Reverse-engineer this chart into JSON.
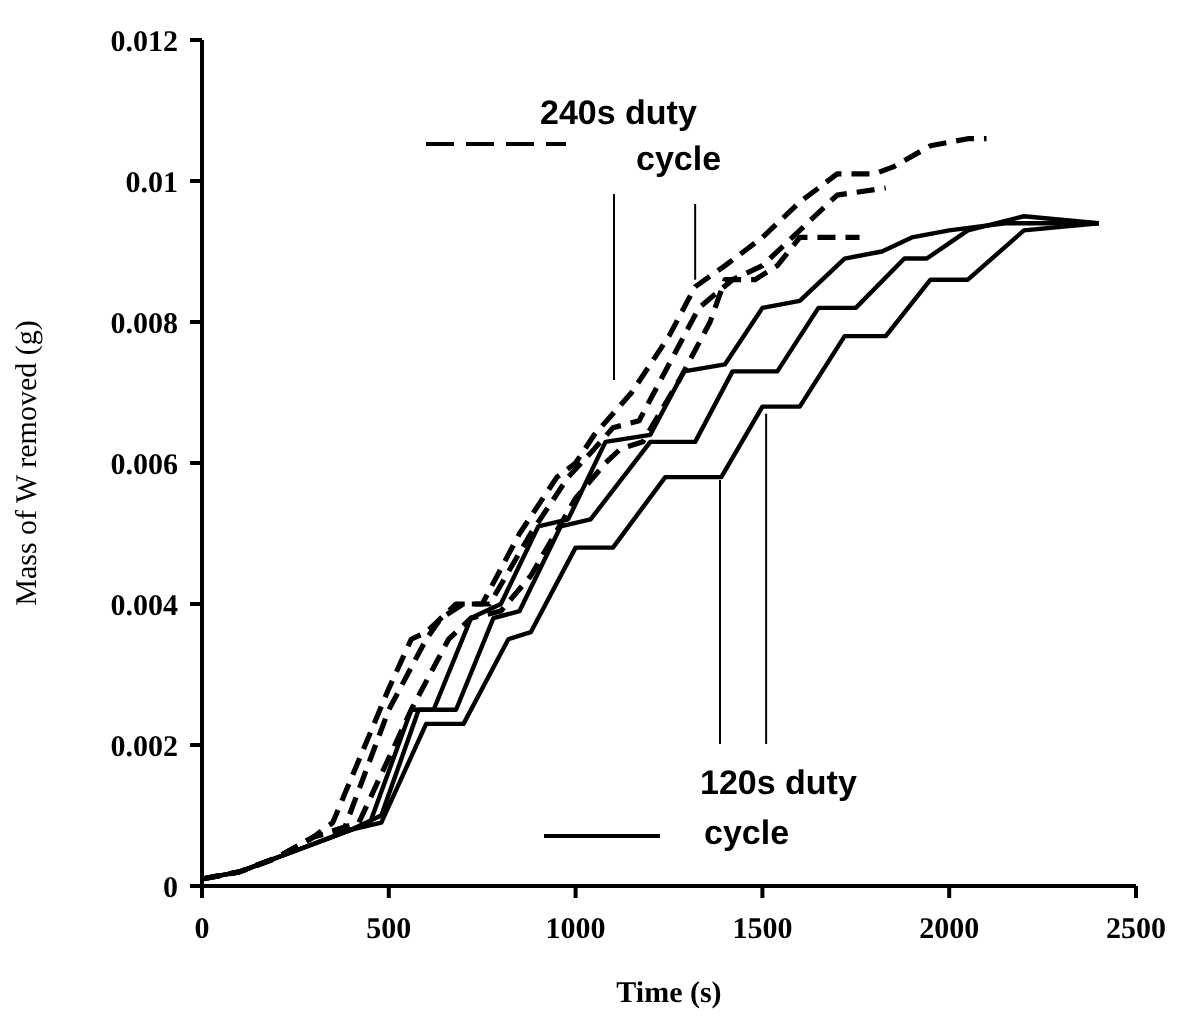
{
  "chart_data": {
    "type": "line",
    "xlabel": "Time (s)",
    "ylabel": "Mass of W removed (g)",
    "xlim": [
      0,
      2500
    ],
    "xticks": [
      0,
      500,
      1000,
      1500,
      2000,
      2500
    ],
    "ylim": [
      0,
      0.012
    ],
    "yticks": [
      0,
      0.002,
      0.004,
      0.006,
      0.008,
      0.01,
      0.012
    ],
    "grid": false,
    "marker": "none",
    "annotations": [
      {
        "text": "240s duty cycle",
        "x": 1320,
        "y": 0.0086
      },
      {
        "text": "120s duty cycle",
        "x": 1510,
        "y": 0.0067
      }
    ],
    "series": [
      {
        "color": "#000000",
        "line_style": "dashed",
        "x": [
          0,
          100,
          200,
          300,
          350,
          500,
          560,
          600,
          680,
          750,
          850,
          950,
          1000,
          1050,
          1150,
          1250,
          1320,
          1400,
          1500,
          1600,
          1700,
          1800,
          1850,
          1950,
          2050,
          2100
        ],
        "values": [
          0.0001,
          0.0002,
          0.0004,
          0.0007,
          0.0009,
          0.0028,
          0.0035,
          0.0036,
          0.004,
          0.004,
          0.005,
          0.0058,
          0.006,
          0.0064,
          0.007,
          0.0078,
          0.0085,
          0.0088,
          0.0092,
          0.0097,
          0.0101,
          0.0101,
          0.0102,
          0.0105,
          0.0106,
          0.0106
        ]
      },
      {
        "color": "#000000",
        "line_style": "dashed",
        "x": [
          0,
          100,
          200,
          300,
          380,
          500,
          600,
          640,
          700,
          770,
          880,
          980,
          1050,
          1100,
          1170,
          1250,
          1330,
          1420,
          1500,
          1600,
          1700,
          1830
        ],
        "values": [
          0.0001,
          0.0002,
          0.0004,
          0.0007,
          0.0008,
          0.0025,
          0.0035,
          0.0038,
          0.004,
          0.004,
          0.005,
          0.0058,
          0.0062,
          0.0065,
          0.0066,
          0.0074,
          0.0082,
          0.0086,
          0.0088,
          0.0093,
          0.0098,
          0.0099
        ]
      },
      {
        "color": "#000000",
        "line_style": "dashed",
        "x": [
          0,
          100,
          200,
          300,
          420,
          560,
          660,
          720,
          800,
          880,
          1000,
          1080,
          1120,
          1180,
          1280,
          1360,
          1400,
          1480,
          1540,
          1600,
          1760
        ],
        "values": [
          0.0001,
          0.0002,
          0.0004,
          0.0007,
          0.0009,
          0.0025,
          0.0035,
          0.0038,
          0.0039,
          0.0044,
          0.0055,
          0.006,
          0.0062,
          0.0063,
          0.0072,
          0.008,
          0.0086,
          0.0086,
          0.0088,
          0.0092,
          0.0092
        ]
      },
      {
        "color": "#000000",
        "line_style": "solid",
        "x": [
          0,
          100,
          200,
          300,
          400,
          450,
          560,
          620,
          720,
          800,
          900,
          980,
          1080,
          1200,
          1290,
          1400,
          1500,
          1600,
          1720,
          1820,
          1900,
          2000,
          2150,
          2400
        ],
        "values": [
          0.0001,
          0.0002,
          0.0004,
          0.0006,
          0.0008,
          0.0009,
          0.0025,
          0.0025,
          0.0038,
          0.004,
          0.0051,
          0.0052,
          0.0063,
          0.0064,
          0.0073,
          0.0074,
          0.0082,
          0.0083,
          0.0089,
          0.009,
          0.0092,
          0.0093,
          0.0094,
          0.0094
        ]
      },
      {
        "color": "#000000",
        "line_style": "solid",
        "x": [
          0,
          100,
          200,
          300,
          400,
          480,
          580,
          680,
          780,
          850,
          960,
          1040,
          1200,
          1320,
          1420,
          1540,
          1650,
          1750,
          1880,
          1940,
          2050,
          2200,
          2400
        ],
        "values": [
          0.0001,
          0.0002,
          0.0004,
          0.0006,
          0.0008,
          0.001,
          0.0025,
          0.0025,
          0.0038,
          0.0039,
          0.0051,
          0.0052,
          0.0063,
          0.0063,
          0.0073,
          0.0073,
          0.0082,
          0.0082,
          0.0089,
          0.0089,
          0.0093,
          0.0095,
          0.0094
        ]
      },
      {
        "color": "#000000",
        "line_style": "solid",
        "x": [
          0,
          100,
          200,
          300,
          400,
          480,
          600,
          700,
          820,
          880,
          1000,
          1100,
          1240,
          1390,
          1500,
          1600,
          1720,
          1830,
          1950,
          2050,
          2200,
          2400
        ],
        "values": [
          0.0001,
          0.0002,
          0.0004,
          0.0006,
          0.0008,
          0.0009,
          0.0023,
          0.0023,
          0.0035,
          0.0036,
          0.0048,
          0.0048,
          0.0058,
          0.0058,
          0.0068,
          0.0068,
          0.0078,
          0.0078,
          0.0086,
          0.0086,
          0.0093,
          0.0094
        ]
      }
    ]
  }
}
